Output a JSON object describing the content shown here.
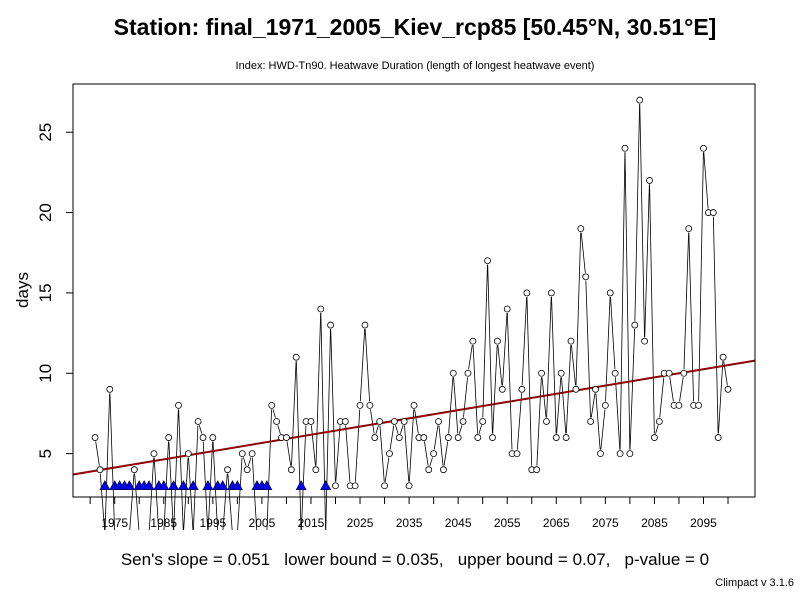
{
  "chart_data": {
    "type": "line",
    "title": "Station: final_1971_2005_Kiev_rcp85 [50.45°N, 30.51°E]",
    "subtitle": "Index: HWD-Tn90. Heatwave Duration (length of longest heatwave event)",
    "xlabel": "",
    "ylabel": "days",
    "xlim": [
      1966.5,
      2105.5
    ],
    "ylim": [
      2.3,
      28.0
    ],
    "x_ticks": [
      1975,
      1985,
      1995,
      2005,
      2015,
      2025,
      2035,
      2045,
      2055,
      2065,
      2075,
      2085,
      2095
    ],
    "y_ticks": [
      5,
      10,
      15,
      20,
      25
    ],
    "grid": false,
    "series": [
      {
        "x": [
          1971,
          1972,
          1973,
          1974,
          1975,
          1976,
          1977,
          1978,
          1979,
          1980,
          1981,
          1982,
          1983,
          1984,
          1985,
          1986,
          1987,
          1988,
          1989,
          1990,
          1991,
          1992,
          1993,
          1994,
          1995,
          1996,
          1997,
          1998,
          1999,
          2000,
          2001,
          2002,
          2003,
          2004,
          2005,
          2006,
          2007,
          2008,
          2009,
          2010,
          2011,
          2012,
          2013,
          2014,
          2015,
          2016,
          2017,
          2018,
          2019,
          2020,
          2021,
          2022,
          2023,
          2024,
          2025,
          2026,
          2027,
          2028,
          2029,
          2030,
          2031,
          2032,
          2033,
          2034,
          2035,
          2036,
          2037,
          2038,
          2039,
          2040,
          2041,
          2042,
          2043,
          2044,
          2045,
          2046,
          2047,
          2048,
          2049,
          2050,
          2051,
          2052,
          2053,
          2054,
          2055,
          2056,
          2057,
          2058,
          2059,
          2060,
          2061,
          2062,
          2063,
          2064,
          2065,
          2066,
          2067,
          2068,
          2069,
          2070,
          2071,
          2072,
          2073,
          2074,
          2075,
          2076,
          2077,
          2078,
          2079,
          2080,
          2081,
          2082,
          2083,
          2084,
          2085,
          2086,
          2087,
          2088,
          2089,
          2090,
          2091,
          2092,
          2093,
          2094,
          2095,
          2096,
          2097,
          2098,
          2099,
          2100
        ],
        "values": [
          6,
          4,
          0,
          9,
          0,
          0,
          0,
          0,
          4,
          0,
          0,
          0,
          5,
          0,
          0,
          6,
          0,
          8,
          0,
          5,
          0,
          7,
          6,
          0,
          6,
          0,
          0,
          4,
          0,
          0,
          5,
          4,
          5,
          0,
          0,
          0,
          8,
          7,
          6,
          6,
          4,
          11,
          0,
          7,
          7,
          4,
          14,
          0,
          13,
          3,
          7,
          7,
          3,
          3,
          8,
          13,
          8,
          6,
          7,
          3,
          5,
          7,
          6,
          7,
          3,
          8,
          6,
          6,
          4,
          5,
          7,
          4,
          6,
          10,
          6,
          7,
          10,
          12,
          6,
          7,
          17,
          6,
          12,
          9,
          14,
          5,
          5,
          9,
          15,
          4,
          4,
          10,
          7,
          15,
          6,
          10,
          6,
          12,
          9,
          19,
          16,
          7,
          9,
          5,
          8,
          15,
          10,
          5,
          24,
          5,
          13,
          27,
          12,
          22,
          6,
          7,
          10,
          10,
          8,
          8,
          10,
          19,
          8,
          8,
          24,
          20,
          20,
          6,
          11,
          9
        ]
      }
    ],
    "zero_marker": "triangle",
    "trend": {
      "slope": 0.051,
      "y_at_1966_5": 3.7
    },
    "annotation": "Sen's slope = 0.051   lower bound = 0.035,   upper bound = 0.07,   p-value = 0",
    "colors": {
      "trend": "#8b0000",
      "zero_marker": "#0000ff",
      "series": "#000000"
    }
  },
  "version": "Climpact v 3.1.6"
}
